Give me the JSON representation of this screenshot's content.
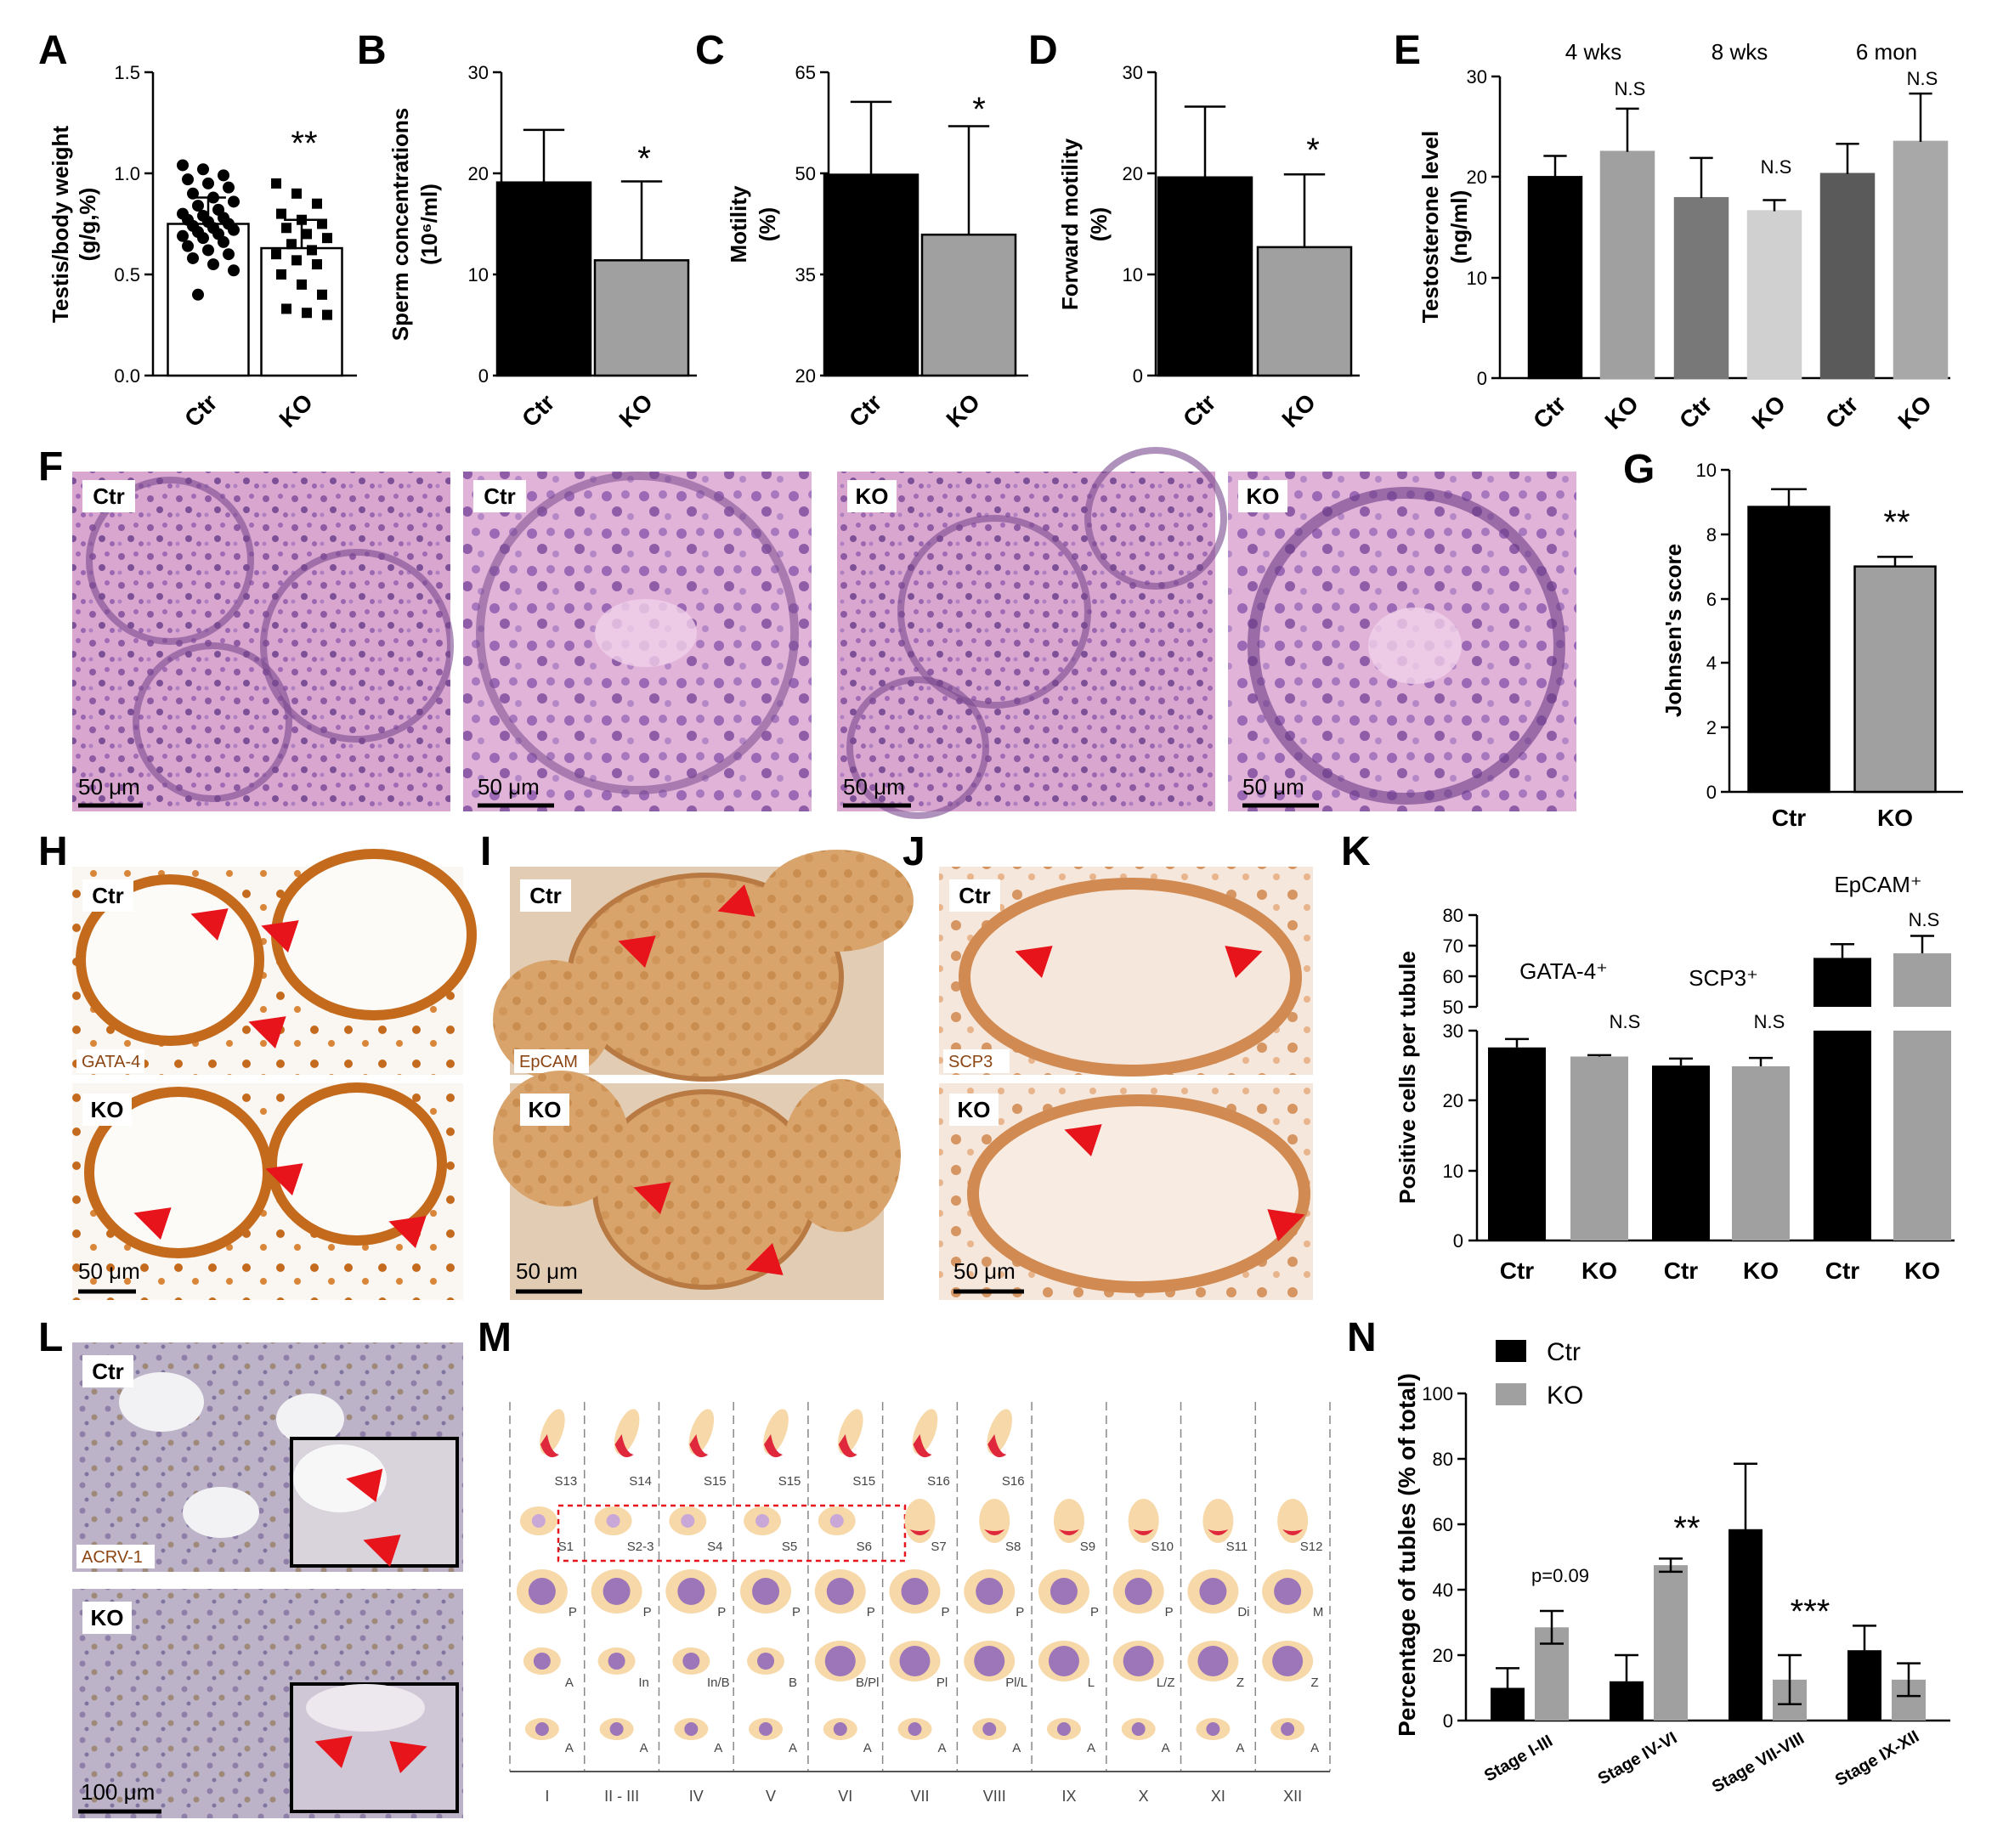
{
  "panels": {
    "A": {
      "label": "A",
      "ylabel": "Testis/body weight",
      "ylabel2": "(g/g,%)",
      "yticks": [
        "0.0",
        "0.5",
        "1.0",
        "1.5"
      ],
      "categories": [
        "Ctr",
        "KO"
      ],
      "sig": "**"
    },
    "B": {
      "label": "B",
      "ylabel": "Sperm concentrations",
      "ylabel2": "(10⁶/ml)",
      "yticks": [
        "0",
        "10",
        "20",
        "30"
      ],
      "categories": [
        "Ctr",
        "KO"
      ],
      "sig": "*"
    },
    "C": {
      "label": "C",
      "ylabel": "Motility",
      "ylabel2": "(%)",
      "yticks": [
        "20",
        "35",
        "50",
        "65"
      ],
      "categories": [
        "Ctr",
        "KO"
      ],
      "sig": "*"
    },
    "D": {
      "label": "D",
      "ylabel": "Forward motility",
      "ylabel2": "(%)",
      "yticks": [
        "0",
        "10",
        "20",
        "30"
      ],
      "categories": [
        "Ctr",
        "KO"
      ],
      "sig": "*"
    },
    "E": {
      "label": "E",
      "ylabel": "Testosterone level",
      "ylabel2": "(ng/ml)",
      "yticks": [
        "0",
        "10",
        "20",
        "30"
      ],
      "groups": [
        "4 wks",
        "8 wks",
        "6 mon"
      ],
      "categories": [
        "Ctr",
        "KO",
        "Ctr",
        "KO",
        "Ctr",
        "KO"
      ],
      "ns": "N.S"
    },
    "F": {
      "label": "F",
      "images": [
        "Ctr",
        "Ctr",
        "KO",
        "KO"
      ],
      "scale": "50 μm"
    },
    "G": {
      "label": "G",
      "ylabel": "Johnsen's score",
      "yticks": [
        "0",
        "2",
        "4",
        "6",
        "8",
        "10"
      ],
      "categories": [
        "Ctr",
        "KO"
      ],
      "sig": "**"
    },
    "H": {
      "label": "H",
      "top": "Ctr",
      "bottom": "KO",
      "stain": "GATA-4",
      "scale": "50 μm"
    },
    "I": {
      "label": "I",
      "top": "Ctr",
      "bottom": "KO",
      "stain": "EpCAM",
      "scale": "50 μm"
    },
    "J": {
      "label": "J",
      "top": "Ctr",
      "bottom": "KO",
      "stain": "SCP3",
      "scale": "50 μm"
    },
    "K": {
      "label": "K",
      "ylabel": "Positive cells per tubule",
      "yticks_low": [
        "0",
        "10",
        "20",
        "30"
      ],
      "yticks_high": [
        "50",
        "60",
        "70",
        "80"
      ],
      "groups": [
        "GATA-4⁺",
        "SCP3⁺",
        "EpCAM⁺"
      ],
      "categories": [
        "Ctr",
        "KO",
        "Ctr",
        "KO",
        "Ctr",
        "KO"
      ],
      "ns": "N.S"
    },
    "L": {
      "label": "L",
      "top": "Ctr",
      "bottom": "KO",
      "stain": "ACRV-1",
      "scale": "100 μm"
    },
    "M": {
      "label": "M",
      "stages": [
        "I",
        "II - III",
        "IV",
        "V",
        "VI",
        "VII",
        "VIII",
        "IX",
        "X",
        "XI",
        "XII"
      ],
      "row1": [
        "S13",
        "S14",
        "S15",
        "S15",
        "S15",
        "S16",
        "S16",
        "",
        "",
        "",
        ""
      ],
      "row2": [
        "S1",
        "S2-3",
        "S4",
        "S5",
        "S6",
        "S7",
        "S8",
        "S9",
        "S10",
        "S11",
        "S12"
      ],
      "row3": [
        "P",
        "P",
        "P",
        "P",
        "P",
        "P",
        "P",
        "P",
        "P",
        "Di",
        "M"
      ],
      "row4": [
        "A",
        "In",
        "In/B",
        "B",
        "B/Pl",
        "Pl",
        "Pl/L",
        "L",
        "L/Z",
        "Z",
        "Z"
      ],
      "row5": [
        "A",
        "A",
        "A",
        "A",
        "A",
        "A",
        "A",
        "A",
        "A",
        "A",
        "A"
      ]
    },
    "N": {
      "label": "N",
      "ylabel": "Percentage of tubles (% of total)",
      "yticks": [
        "0",
        "20",
        "40",
        "60",
        "80",
        "100"
      ],
      "categories": [
        "Stage I-III",
        "Stage IV-VI",
        "Stage VII-VIII",
        "Stage IX-XII"
      ],
      "legend": [
        "Ctr",
        "KO"
      ],
      "annot": [
        "p=0.09",
        "**",
        "***"
      ]
    }
  },
  "chart_data": [
    {
      "type": "bar",
      "panel": "A",
      "categories": [
        "Ctr",
        "KO"
      ],
      "values": [
        0.75,
        0.63
      ],
      "errors": [
        0.13,
        0.14
      ],
      "ylim": [
        0,
        1.5
      ],
      "points": {
        "Ctr": [
          1.04,
          1.02,
          0.99,
          0.97,
          0.95,
          0.93,
          0.9,
          0.88,
          0.86,
          0.84,
          0.82,
          0.8,
          0.79,
          0.78,
          0.77,
          0.76,
          0.75,
          0.74,
          0.73,
          0.72,
          0.71,
          0.7,
          0.69,
          0.68,
          0.66,
          0.64,
          0.62,
          0.6,
          0.58,
          0.55,
          0.52,
          0.4
        ],
        "KO": [
          0.95,
          0.9,
          0.85,
          0.8,
          0.77,
          0.75,
          0.73,
          0.7,
          0.68,
          0.65,
          0.62,
          0.6,
          0.57,
          0.55,
          0.5,
          0.45,
          0.4,
          0.33,
          0.31,
          0.3
        ]
      }
    },
    {
      "type": "bar",
      "panel": "B",
      "categories": [
        "Ctr",
        "KO"
      ],
      "values": [
        19.1,
        11.4
      ],
      "errors": [
        5.2,
        7.8
      ],
      "ylim": [
        0,
        30
      ]
    },
    {
      "type": "bar",
      "panel": "C",
      "categories": [
        "Ctr",
        "KO"
      ],
      "values": [
        49.8,
        40.9
      ],
      "errors": [
        10.8,
        16.1
      ],
      "ylim": [
        20,
        65
      ]
    },
    {
      "type": "bar",
      "panel": "D",
      "categories": [
        "Ctr",
        "KO"
      ],
      "values": [
        19.6,
        12.7
      ],
      "errors": [
        7.0,
        7.2
      ],
      "ylim": [
        0,
        30
      ]
    },
    {
      "type": "bar",
      "panel": "E",
      "categories": [
        "Ctr",
        "KO",
        "Ctr",
        "KO",
        "Ctr",
        "KO"
      ],
      "values": [
        20.0,
        22.5,
        17.9,
        16.6,
        20.3,
        23.5
      ],
      "errors": [
        2.1,
        4.3,
        4.0,
        1.1,
        3.0,
        4.8
      ],
      "ylim": [
        0,
        30
      ],
      "colors": [
        "#000000",
        "#a0a0a0",
        "#787878",
        "#d0d0d0",
        "#5a5a5a",
        "#a8a8a8"
      ]
    },
    {
      "type": "bar",
      "panel": "G",
      "categories": [
        "Ctr",
        "KO"
      ],
      "values": [
        8.85,
        7.0
      ],
      "errors": [
        0.55,
        0.3
      ],
      "ylim": [
        0,
        10
      ]
    },
    {
      "type": "bar",
      "panel": "K",
      "categories": [
        "Ctr",
        "KO",
        "Ctr",
        "KO",
        "Ctr",
        "KO"
      ],
      "values": [
        27.6,
        26.3,
        25.0,
        24.9,
        66.0,
        67.5
      ],
      "errors": [
        1.2,
        0.2,
        1.0,
        1.2,
        4.5,
        5.7
      ],
      "ylim": [
        0,
        80
      ]
    },
    {
      "type": "bar",
      "panel": "N",
      "categories": [
        "Stage I-III",
        "Stage IV-VI",
        "Stage VII-VIII",
        "Stage IX-XII"
      ],
      "series": [
        {
          "name": "Ctr",
          "values": [
            10,
            12,
            58.5,
            21.5
          ],
          "errors": [
            6,
            8,
            20,
            7.5
          ]
        },
        {
          "name": "KO",
          "values": [
            28.5,
            47.5,
            12.5,
            12.5
          ],
          "errors": [
            5,
            2,
            7.5,
            5
          ]
        }
      ],
      "ylim": [
        0,
        100
      ],
      "legend": "top-left"
    }
  ]
}
